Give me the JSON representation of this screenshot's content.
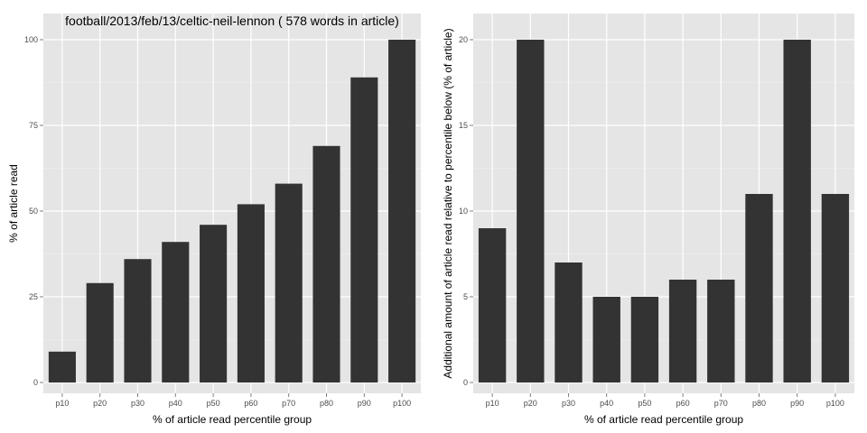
{
  "chart_data": [
    {
      "type": "bar",
      "title": "football/2013/feb/13/celtic-neil-lennon ( 578 words in article)",
      "xlabel": "% of article read percentile group",
      "ylabel": "% of article read",
      "categories": [
        "p10",
        "p20",
        "p30",
        "p40",
        "p50",
        "p60",
        "p70",
        "p80",
        "p90",
        "p100"
      ],
      "values": [
        9,
        29,
        36,
        41,
        46,
        52,
        58,
        69,
        89,
        100
      ],
      "ylim": [
        0,
        105
      ],
      "yticks": [
        0,
        25,
        50,
        75,
        100
      ],
      "grid": true,
      "bar_color": "#333333",
      "panel_color": "#e5e5e5"
    },
    {
      "type": "bar",
      "title": "",
      "xlabel": "% of article read percentile group",
      "ylabel": "Additional amount of article read relative to percentile below (% of article)",
      "categories": [
        "p10",
        "p20",
        "p30",
        "p40",
        "p50",
        "p60",
        "p70",
        "p80",
        "p90",
        "p100"
      ],
      "values": [
        9,
        20,
        7,
        5,
        5,
        6,
        6,
        11,
        20,
        11
      ],
      "ylim": [
        0,
        21
      ],
      "yticks": [
        0,
        5,
        10,
        15,
        20
      ],
      "grid": true,
      "bar_color": "#333333",
      "panel_color": "#e5e5e5"
    }
  ]
}
